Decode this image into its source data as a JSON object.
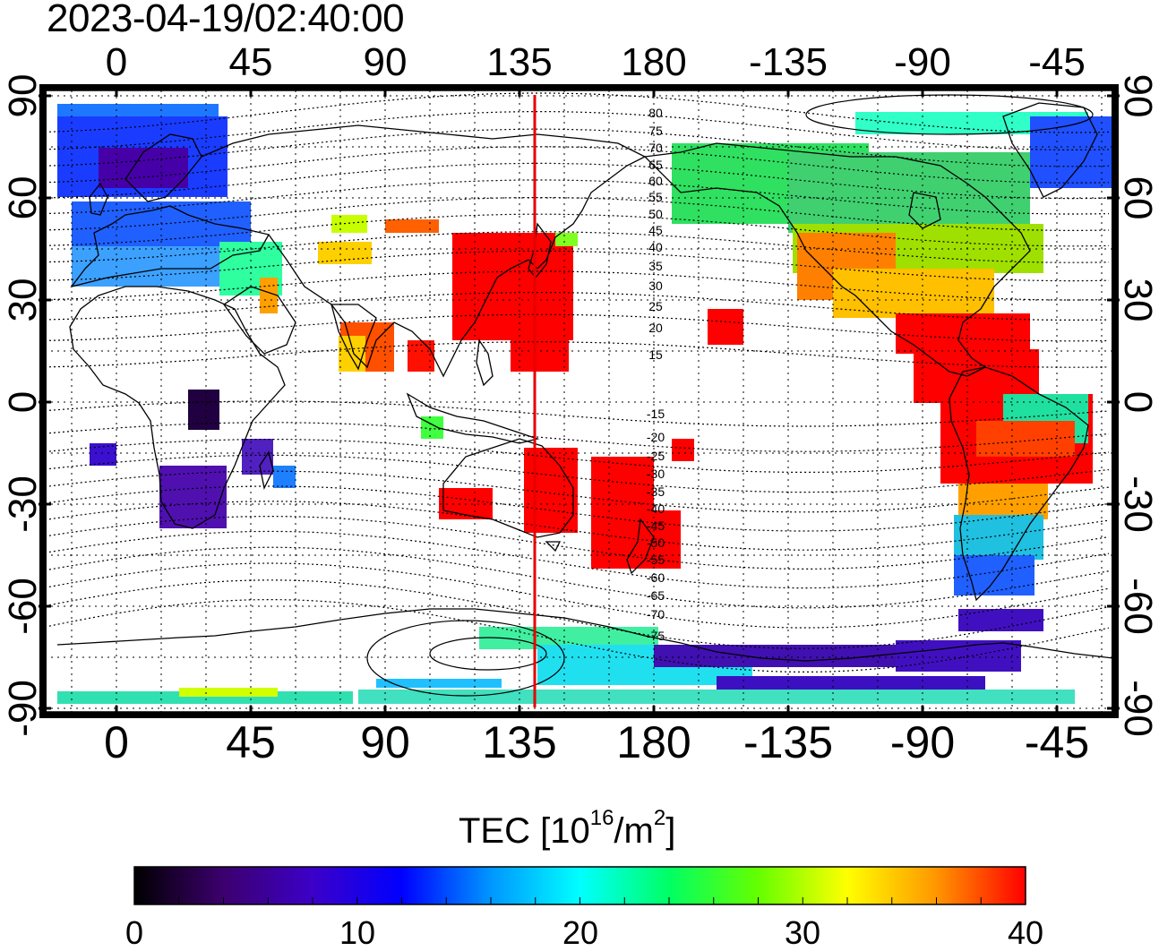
{
  "timestamp": "2023-04-19/02:40:00",
  "map": {
    "longitude_ticks_top": [
      "0",
      "45",
      "90",
      "135",
      "180",
      "-135",
      "-90",
      "-45"
    ],
    "longitude_ticks_bottom": [
      "0",
      "45",
      "90",
      "135",
      "180",
      "-135",
      "-90",
      "-45"
    ],
    "latitude_ticks_left": [
      "90",
      "60",
      "30",
      "0",
      "-30",
      "-60",
      "-90"
    ],
    "latitude_ticks_right": [
      "90",
      "60",
      "30",
      "0",
      "-30",
      "-60",
      "-90"
    ],
    "grid_spacing_deg": 15,
    "marker_meridian_lon": 140,
    "marker_color": "#e60000",
    "magnetic_contour_labels_north": [
      "80",
      "75",
      "70",
      "65",
      "60",
      "55",
      "50",
      "45",
      "40",
      "35",
      "30",
      "25",
      "20",
      "15"
    ],
    "magnetic_contour_labels_south": [
      "-15",
      "-20",
      "-25",
      "-30",
      "-35",
      "-40",
      "-45",
      "-50",
      "-55",
      "-60",
      "-65",
      "-70",
      "-75"
    ]
  },
  "colorbar": {
    "title_main": "TEC  [10",
    "title_exp1": "16",
    "title_mid": "/m",
    "title_exp2": "2",
    "title_end": "]",
    "min": 0,
    "max": 40,
    "ticks": [
      "0",
      "10",
      "20",
      "30",
      "40"
    ],
    "colors": [
      "#000000",
      "#3c006e",
      "#3c00c8",
      "#0000ff",
      "#0096ff",
      "#00ffff",
      "#00ff64",
      "#64ff00",
      "#ffff00",
      "#ff9600",
      "#ff0000"
    ]
  },
  "tec_regions": [
    {
      "region": "Europe / North Atlantic",
      "level_tecu": 9
    },
    {
      "region": "Scandinavia",
      "level_tecu": 5
    },
    {
      "region": "Middle East",
      "level_tecu": 23
    },
    {
      "region": "India",
      "level_tecu": 34
    },
    {
      "region": "Japan / East Asia",
      "level_tecu": 40
    },
    {
      "region": "Australia",
      "level_tecu": 40
    },
    {
      "region": "New Zealand area",
      "level_tecu": 40
    },
    {
      "region": "Africa",
      "level_tecu": 5
    },
    {
      "region": "North America (north)",
      "level_tecu": 22
    },
    {
      "region": "North America (south)",
      "level_tecu": 36
    },
    {
      "region": "Central America / Caribbean",
      "level_tecu": 40
    },
    {
      "region": "South America (north)",
      "level_tecu": 40
    },
    {
      "region": "South America (south)",
      "level_tecu": 14
    },
    {
      "region": "Antarctica",
      "level_tecu": 9
    }
  ]
}
